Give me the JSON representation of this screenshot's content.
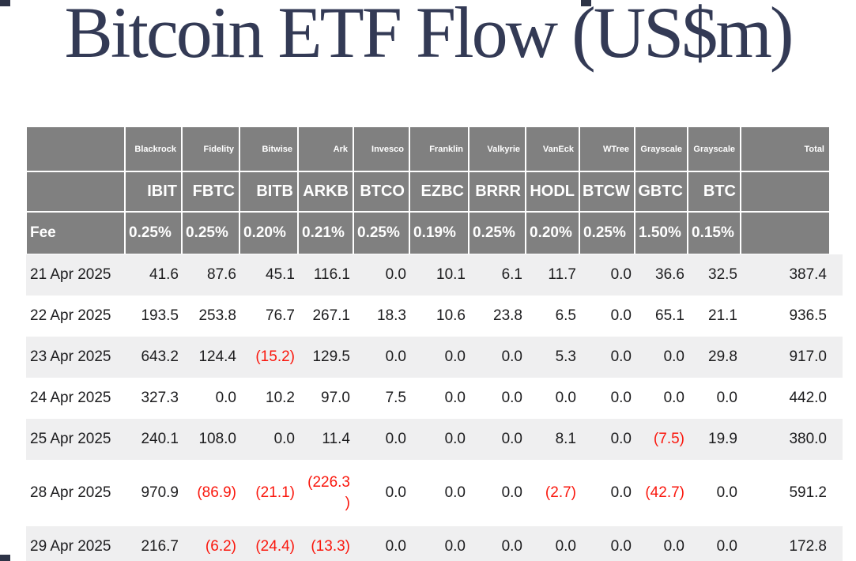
{
  "title": "Bitcoin ETF Flow (US$m)",
  "colors": {
    "header_bg": "#808080",
    "header_text": "#ffffff",
    "title_text": "#333a55",
    "body_text": "#1c1c1e",
    "negative_text": "#fa170d",
    "stripe_bg": "#efeff0",
    "row_bg": "#ffffff"
  },
  "chart_data": {
    "type": "table",
    "title": "Bitcoin ETF Flow (US$m)",
    "fee_label": "Fee",
    "total_label": "Total",
    "negative_format": "parentheses-red",
    "columns": [
      {
        "provider": "Blackrock",
        "ticker": "IBIT",
        "fee": "0.25%"
      },
      {
        "provider": "Fidelity",
        "ticker": "FBTC",
        "fee": "0.25%"
      },
      {
        "provider": "Bitwise",
        "ticker": "BITB",
        "fee": "0.20%"
      },
      {
        "provider": "Ark",
        "ticker": "ARKB",
        "fee": "0.21%"
      },
      {
        "provider": "Invesco",
        "ticker": "BTCO",
        "fee": "0.25%"
      },
      {
        "provider": "Franklin",
        "ticker": "EZBC",
        "fee": "0.19%"
      },
      {
        "provider": "Valkyrie",
        "ticker": "BRRR",
        "fee": "0.25%"
      },
      {
        "provider": "VanEck",
        "ticker": "HODL",
        "fee": "0.20%"
      },
      {
        "provider": "WTree",
        "ticker": "BTCW",
        "fee": "0.25%"
      },
      {
        "provider": "Grayscale",
        "ticker": "GBTC",
        "fee": "1.50%"
      },
      {
        "provider": "Grayscale",
        "ticker": "BTC",
        "fee": "0.15%"
      }
    ],
    "rows": [
      {
        "date": "21 Apr 2025",
        "values": [
          "41.6",
          "87.6",
          "45.1",
          "116.1",
          "0.0",
          "10.1",
          "6.1",
          "11.7",
          "0.0",
          "36.6",
          "32.5"
        ],
        "total": "387.4"
      },
      {
        "date": "22 Apr 2025",
        "values": [
          "193.5",
          "253.8",
          "76.7",
          "267.1",
          "18.3",
          "10.6",
          "23.8",
          "6.5",
          "0.0",
          "65.1",
          "21.1"
        ],
        "total": "936.5"
      },
      {
        "date": "23 Apr 2025",
        "values": [
          "643.2",
          "124.4",
          "(15.2)",
          "129.5",
          "0.0",
          "0.0",
          "0.0",
          "5.3",
          "0.0",
          "0.0",
          "29.8"
        ],
        "total": "917.0"
      },
      {
        "date": "24 Apr 2025",
        "values": [
          "327.3",
          "0.0",
          "10.2",
          "97.0",
          "7.5",
          "0.0",
          "0.0",
          "0.0",
          "0.0",
          "0.0",
          "0.0"
        ],
        "total": "442.0"
      },
      {
        "date": "25 Apr 2025",
        "values": [
          "240.1",
          "108.0",
          "0.0",
          "11.4",
          "0.0",
          "0.0",
          "0.0",
          "8.1",
          "0.0",
          "(7.5)",
          "19.9"
        ],
        "total": "380.0"
      },
      {
        "date": "28 Apr 2025",
        "values": [
          "970.9",
          "(86.9)",
          "(21.1)",
          "(226.3)",
          "0.0",
          "0.0",
          "0.0",
          "(2.7)",
          "0.0",
          "(42.7)",
          "0.0"
        ],
        "total": "591.2"
      },
      {
        "date": "29 Apr 2025",
        "values": [
          "216.7",
          "(6.2)",
          "(24.4)",
          "(13.3)",
          "0.0",
          "0.0",
          "0.0",
          "0.0",
          "0.0",
          "0.0",
          "0.0"
        ],
        "total": "172.8"
      }
    ]
  }
}
